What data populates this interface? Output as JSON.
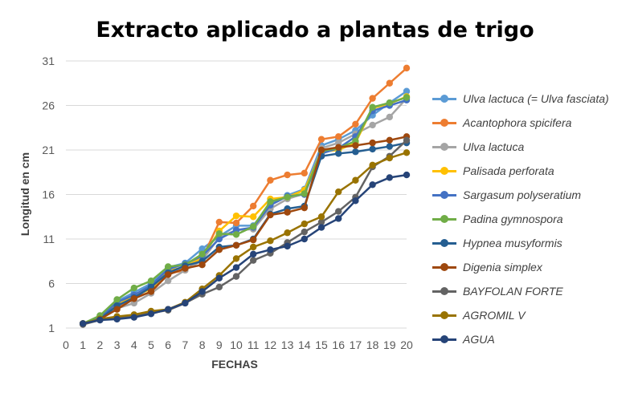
{
  "chart_data": {
    "type": "line",
    "title": "Extracto aplicado a plantas de trigo",
    "xlabel": "FECHAS",
    "ylabel": "Longitud en cm",
    "x_ticks": [
      0,
      1,
      2,
      3,
      4,
      5,
      6,
      7,
      8,
      9,
      10,
      11,
      12,
      13,
      14,
      15,
      16,
      17,
      18,
      19,
      20
    ],
    "y_ticks": [
      1,
      6,
      11,
      16,
      21,
      26,
      31
    ],
    "xlim": [
      0,
      20
    ],
    "ylim": [
      1,
      31
    ],
    "x": [
      1,
      2,
      3,
      4,
      5,
      6,
      7,
      8,
      9,
      10,
      11,
      12,
      13,
      14,
      15,
      16,
      17,
      18,
      19,
      20
    ],
    "legend_position": "right",
    "series": [
      {
        "name": "Ulva lactuca (= Ulva fasciata)",
        "color": "#5b9bd5",
        "values": [
          1.5,
          2.2,
          4.0,
          5.0,
          6.0,
          7.8,
          8.3,
          9.9,
          11.3,
          12.5,
          12.5,
          15.0,
          15.9,
          16.6,
          21.5,
          22.2,
          23.2,
          24.9,
          26.3,
          27.6
        ]
      },
      {
        "name": "Acantophora spicifera",
        "color": "#ed7d31",
        "values": [
          1.5,
          2.2,
          3.3,
          4.5,
          5.0,
          7.1,
          7.5,
          8.8,
          12.9,
          12.8,
          14.7,
          17.6,
          18.2,
          18.4,
          22.2,
          22.5,
          23.9,
          26.8,
          28.5,
          30.2
        ]
      },
      {
        "name": "Ulva lactuca",
        "color": "#a5a5a5",
        "values": [
          1.5,
          2.0,
          3.2,
          3.8,
          4.9,
          6.3,
          7.5,
          8.6,
          11.2,
          12.0,
          12.1,
          14.4,
          15.5,
          16.1,
          21.2,
          21.8,
          22.8,
          23.8,
          24.7,
          26.8
        ]
      },
      {
        "name": "Palisada perforata",
        "color": "#ffc000",
        "values": [
          1.5,
          2.3,
          3.6,
          4.6,
          5.4,
          7.4,
          7.9,
          8.9,
          11.9,
          13.6,
          13.5,
          15.5,
          15.7,
          16.5,
          20.8,
          21.0,
          21.8,
          25.7,
          26.2,
          27.0
        ]
      },
      {
        "name": "Sargasum polyseratium",
        "color": "#4472c4",
        "values": [
          1.5,
          2.1,
          3.9,
          4.7,
          5.8,
          7.6,
          8.2,
          9.1,
          11.0,
          12.0,
          12.3,
          14.8,
          15.8,
          16.0,
          20.6,
          21.2,
          22.5,
          25.4,
          26.0,
          26.6
        ]
      },
      {
        "name": "Padina gymnospora",
        "color": "#70ad47",
        "values": [
          1.5,
          2.4,
          4.2,
          5.5,
          6.3,
          7.9,
          8.1,
          9.3,
          11.6,
          11.5,
          12.4,
          15.2,
          15.7,
          16.1,
          20.9,
          21.2,
          22.0,
          25.8,
          26.3,
          26.9
        ]
      },
      {
        "name": "Hypnea musyformis",
        "color": "#255e91",
        "values": [
          1.5,
          2.0,
          3.5,
          4.4,
          5.6,
          7.2,
          8.0,
          8.5,
          10.1,
          10.3,
          11.0,
          13.8,
          14.4,
          14.7,
          20.3,
          20.6,
          20.8,
          21.1,
          21.4,
          21.8
        ]
      },
      {
        "name": "Digenia simplex",
        "color": "#9e480e",
        "values": [
          1.5,
          2.0,
          3.1,
          4.3,
          5.1,
          7.0,
          7.7,
          8.1,
          9.8,
          10.3,
          10.9,
          13.7,
          14.0,
          14.5,
          21.0,
          21.3,
          21.5,
          21.8,
          22.1,
          22.5
        ]
      },
      {
        "name": "BAYFOLAN FORTE",
        "color": "#636363",
        "values": [
          1.4,
          1.9,
          2.1,
          2.3,
          2.7,
          3.0,
          3.8,
          4.8,
          5.6,
          6.8,
          8.6,
          9.4,
          10.6,
          11.8,
          12.9,
          14.1,
          15.7,
          19.1,
          20.3,
          22.1
        ]
      },
      {
        "name": "AGROMIL V",
        "color": "#997300",
        "values": [
          1.5,
          2.0,
          2.3,
          2.5,
          2.9,
          3.1,
          3.9,
          5.4,
          6.9,
          8.8,
          10.1,
          10.8,
          11.7,
          12.7,
          13.5,
          16.3,
          17.6,
          19.3,
          20.1,
          20.7
        ]
      },
      {
        "name": "AGUA",
        "color": "#264478",
        "values": [
          1.5,
          1.9,
          2.0,
          2.2,
          2.6,
          3.1,
          3.8,
          5.1,
          6.6,
          7.8,
          9.3,
          9.8,
          10.2,
          11.0,
          12.3,
          13.3,
          15.3,
          17.1,
          17.9,
          18.2
        ]
      }
    ]
  }
}
